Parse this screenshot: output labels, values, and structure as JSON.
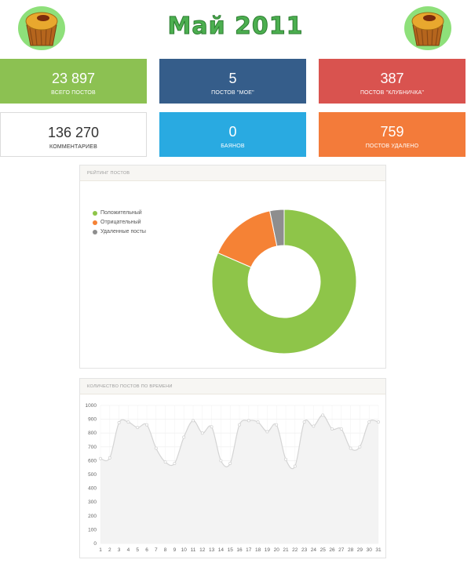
{
  "header": {
    "title": "Май 2011"
  },
  "stats": [
    {
      "value": "23 897",
      "label": "всего постов",
      "color": "#8cc152"
    },
    {
      "value": "5",
      "label": "постов \"мое\"",
      "color": "#355d8a"
    },
    {
      "value": "387",
      "label": "постов \"клубничка\"",
      "color": "#d9534f"
    },
    {
      "value": "136 270",
      "label": "комментариев",
      "color": "#ffffff"
    },
    {
      "value": "0",
      "label": "баянов",
      "color": "#29aae1"
    },
    {
      "value": "759",
      "label": "постов удалено",
      "color": "#f37b3a"
    }
  ],
  "rating_panel": {
    "title": "Рейтинг постов"
  },
  "timeline_panel": {
    "title": "Количество постов по времени"
  },
  "chart_data": [
    {
      "type": "pie",
      "title": "Рейтинг постов",
      "donut": true,
      "legend_position": "top-left",
      "labels": [
        "Положительный",
        "Отрицательный",
        "Удаленные посты"
      ],
      "values": [
        81.5,
        15.3,
        3.2
      ],
      "colors": [
        "#8ec549",
        "#f58235",
        "#8e8e8e"
      ]
    },
    {
      "type": "area",
      "title": "Количество постов по времени",
      "x": [
        1,
        2,
        3,
        4,
        5,
        6,
        7,
        8,
        9,
        10,
        11,
        12,
        13,
        14,
        15,
        16,
        17,
        18,
        19,
        20,
        21,
        22,
        23,
        24,
        25,
        26,
        27,
        28,
        29,
        30,
        31
      ],
      "values": [
        615,
        620,
        875,
        880,
        840,
        860,
        690,
        590,
        580,
        770,
        890,
        800,
        845,
        600,
        580,
        860,
        890,
        880,
        810,
        860,
        610,
        560,
        880,
        850,
        930,
        830,
        830,
        690,
        700,
        880,
        880
      ],
      "ylim": [
        0,
        1000
      ],
      "yticks": [
        0,
        100,
        200,
        300,
        400,
        500,
        600,
        700,
        800,
        900,
        1000
      ],
      "grid": true,
      "line_color": "#d4d4d4",
      "fill_color": "#f3f3f3"
    }
  ]
}
